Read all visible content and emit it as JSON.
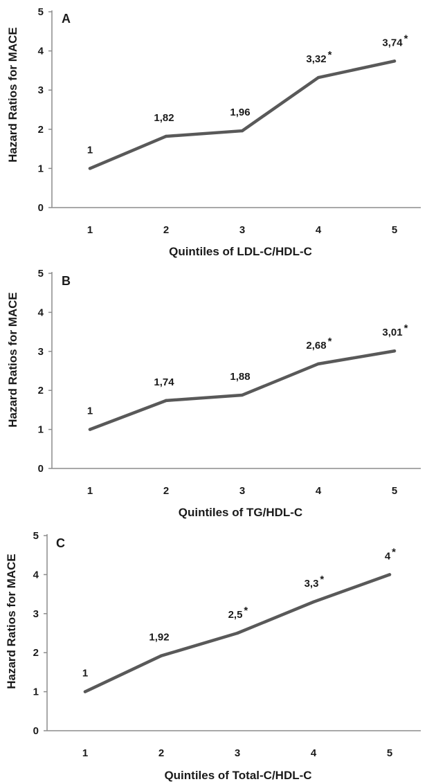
{
  "chart_data": [
    {
      "type": "line",
      "panel": "A",
      "ylabel": "Hazard Ratios for MACE",
      "xlabel": "Quintiles of LDL-C/HDL-C",
      "categories": [
        "1",
        "2",
        "3",
        "4",
        "5"
      ],
      "values": [
        1,
        1.82,
        1.96,
        3.32,
        3.74
      ],
      "labels": [
        "1",
        "1,82",
        "1,96",
        "3,32",
        "3,74"
      ],
      "significant": [
        false,
        false,
        false,
        true,
        true
      ],
      "significance_marker": "*",
      "yticks": [
        "0",
        "1",
        "2",
        "3",
        "4",
        "5"
      ],
      "ylim": [
        0,
        5
      ],
      "line_color": "#595959"
    },
    {
      "type": "line",
      "panel": "B",
      "ylabel": "Hazard Ratios for MACE",
      "xlabel": "Quintiles of TG/HDL-C",
      "categories": [
        "1",
        "2",
        "3",
        "4",
        "5"
      ],
      "values": [
        1,
        1.74,
        1.88,
        2.68,
        3.01
      ],
      "labels": [
        "1",
        "1,74",
        "1,88",
        "2,68",
        "3,01"
      ],
      "significant": [
        false,
        false,
        false,
        true,
        true
      ],
      "significance_marker": "*",
      "yticks": [
        "0",
        "1",
        "2",
        "3",
        "4",
        "5"
      ],
      "ylim": [
        0,
        5
      ],
      "line_color": "#595959"
    },
    {
      "type": "line",
      "panel": "C",
      "ylabel": "Hazard Ratios for MACE",
      "xlabel": "Quintiles of Total-C/HDL-C",
      "categories": [
        "1",
        "2",
        "3",
        "4",
        "5"
      ],
      "values": [
        1,
        1.92,
        2.5,
        3.3,
        4
      ],
      "labels": [
        "1",
        "1,92",
        "2,5",
        "3,3",
        "4"
      ],
      "significant": [
        false,
        false,
        true,
        true,
        true
      ],
      "significance_marker": "*",
      "yticks": [
        "0",
        "1",
        "2",
        "3",
        "4",
        "5"
      ],
      "ylim": [
        0,
        5
      ],
      "line_color": "#595959"
    }
  ]
}
